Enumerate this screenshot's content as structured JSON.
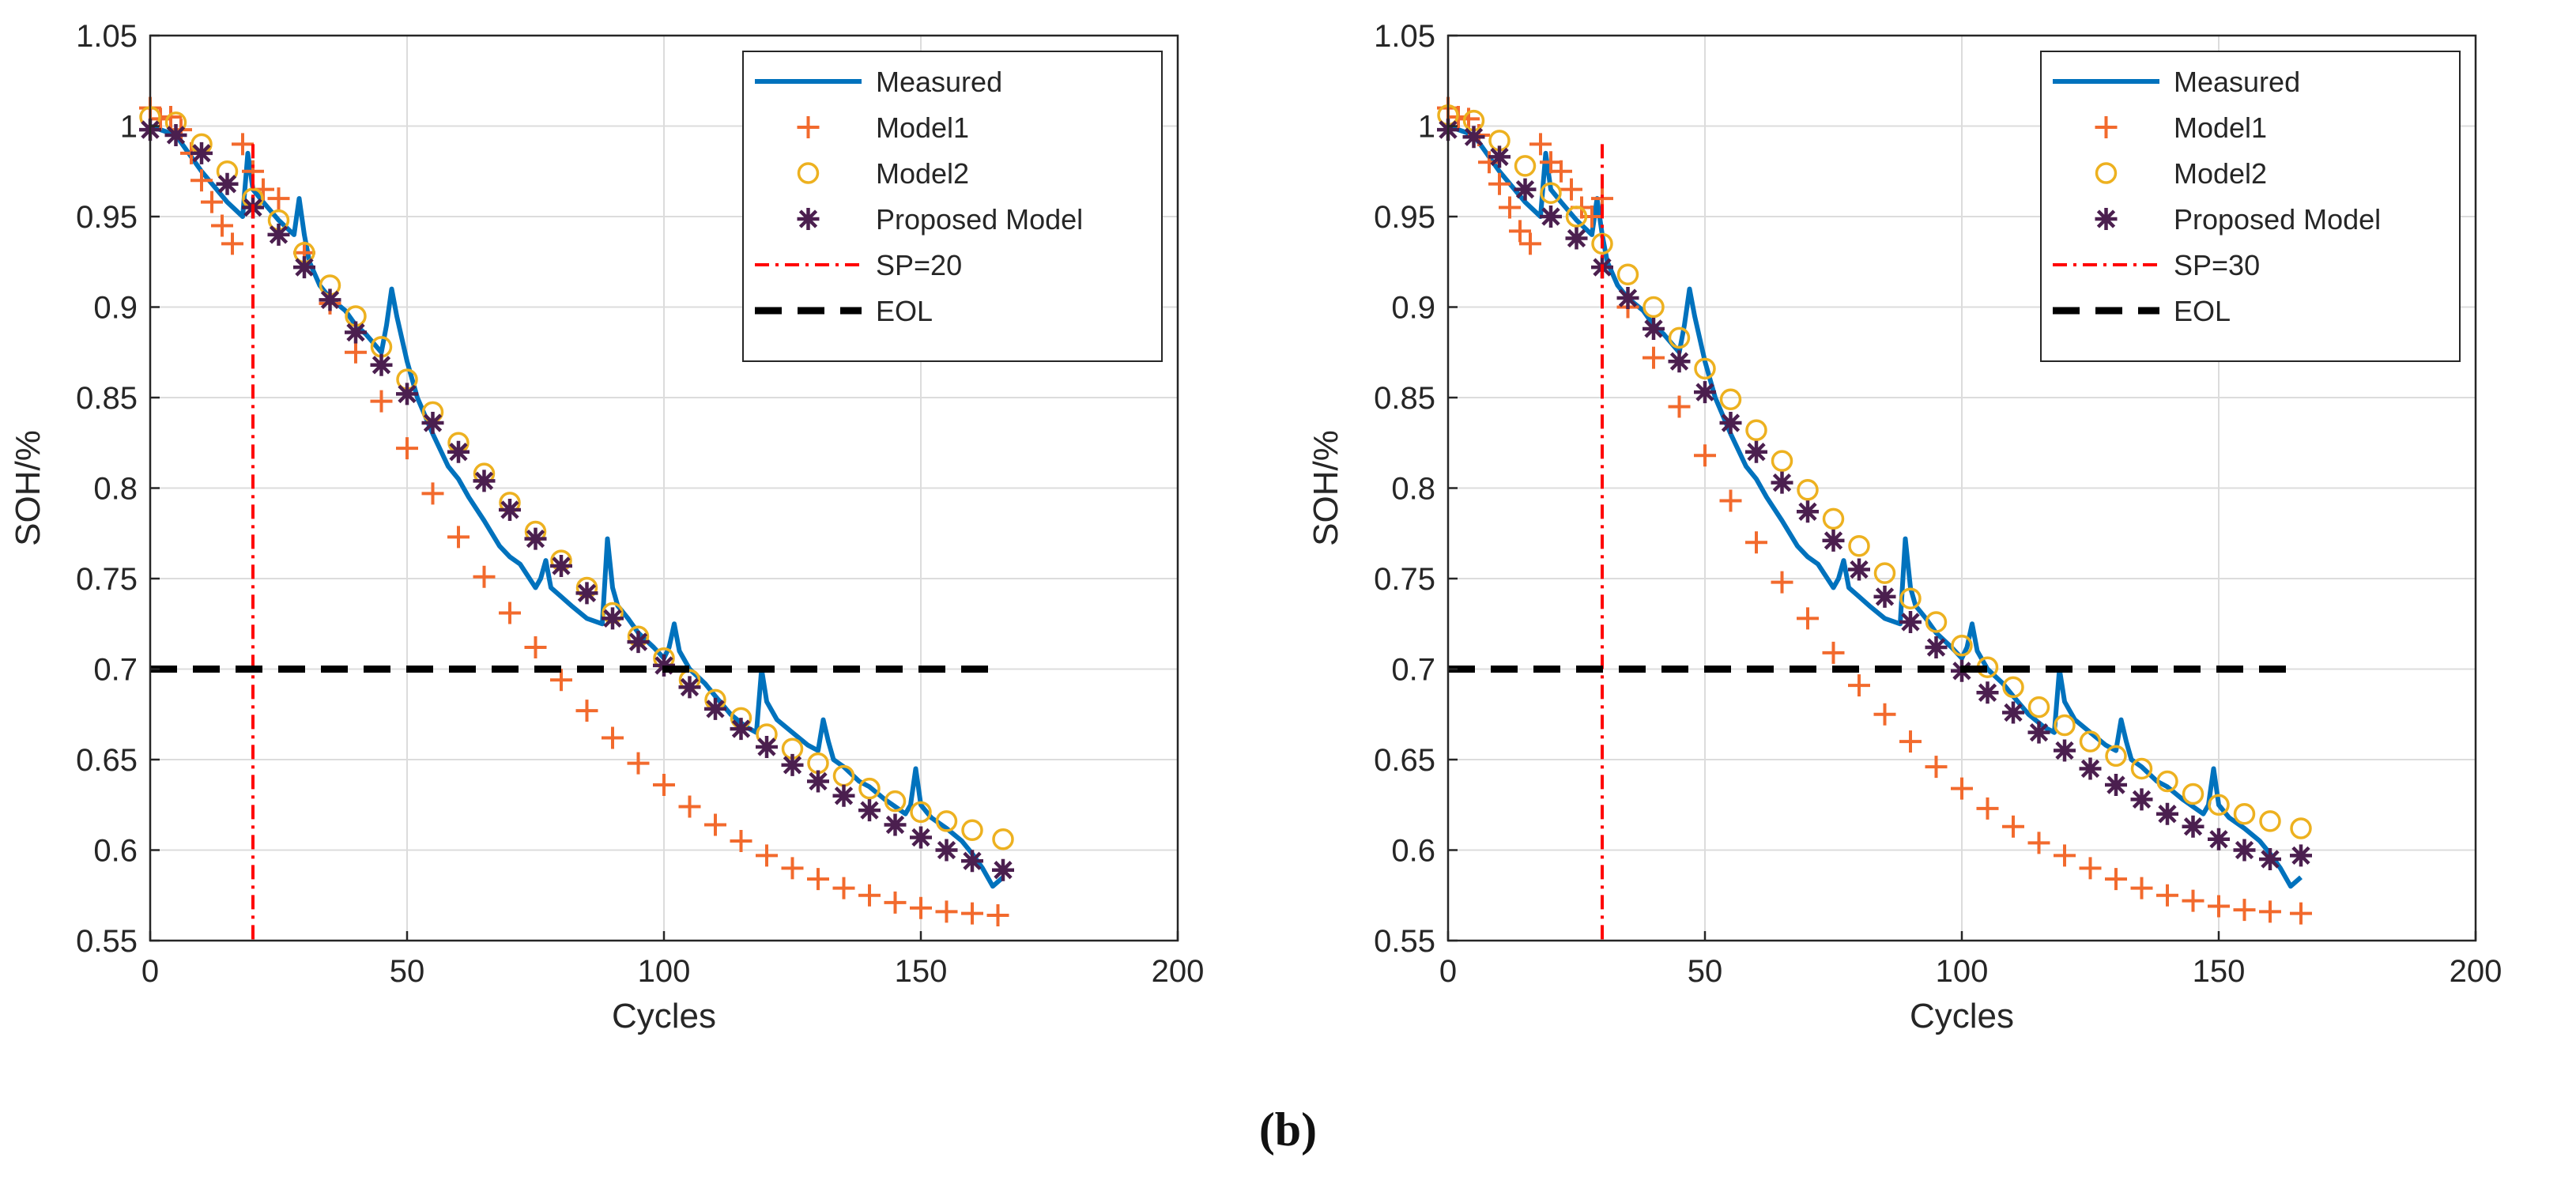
{
  "caption": "(b)",
  "colors": {
    "measured": "#0072bd",
    "model1": "#f26a2d",
    "model2": "#edb120",
    "proposed": "#4b1f4f",
    "sp": "#ff0000",
    "eol": "#000000",
    "grid": "#dcdcdc",
    "axis": "#262626"
  },
  "chart_data": [
    {
      "type": "line",
      "xlabel": "Cycles",
      "ylabel": "SOH/%",
      "xlim": [
        0,
        200
      ],
      "ylim": [
        0.55,
        1.05
      ],
      "xticks": [
        0,
        50,
        100,
        150,
        200
      ],
      "xtick_labels": [
        "0",
        "50",
        "100",
        "150",
        "200"
      ],
      "yticks": [
        0.55,
        0.6,
        0.65,
        0.7,
        0.75,
        0.8,
        0.85,
        0.9,
        0.95,
        1.0,
        1.05
      ],
      "ytick_labels": [
        "0.55",
        "0.6",
        "0.65",
        "0.7",
        "0.75",
        "0.8",
        "0.85",
        "0.9",
        "0.95",
        "1",
        "1.05"
      ],
      "grid": true,
      "legend_position": "top-right",
      "legend": [
        "Measured",
        "Model1",
        "Model2",
        "Proposed Model",
        "SP=20",
        "EOL"
      ],
      "series": [
        {
          "name": "Measured",
          "style": "line",
          "x": [
            0,
            5,
            10,
            15,
            18,
            19,
            20,
            22,
            25,
            28,
            29,
            30,
            31,
            33,
            35,
            38,
            40,
            42,
            45,
            46,
            47,
            48,
            50,
            52,
            55,
            58,
            60,
            62,
            65,
            68,
            70,
            72,
            75,
            76,
            77,
            78,
            80,
            82,
            85,
            88,
            89,
            90,
            91,
            93,
            95,
            98,
            100,
            101,
            102,
            103,
            105,
            108,
            110,
            113,
            116,
            118,
            119,
            120,
            122,
            125,
            128,
            130,
            131,
            132,
            133,
            135,
            138,
            140,
            143,
            145,
            147,
            148,
            149,
            150,
            152,
            155,
            158,
            160,
            162,
            164,
            166
          ],
          "y": [
            1.0,
            0.995,
            0.975,
            0.958,
            0.95,
            0.985,
            0.965,
            0.958,
            0.948,
            0.94,
            0.96,
            0.94,
            0.925,
            0.912,
            0.905,
            0.898,
            0.89,
            0.885,
            0.875,
            0.89,
            0.91,
            0.895,
            0.87,
            0.85,
            0.83,
            0.812,
            0.805,
            0.795,
            0.782,
            0.768,
            0.762,
            0.758,
            0.745,
            0.75,
            0.76,
            0.745,
            0.74,
            0.735,
            0.728,
            0.725,
            0.772,
            0.745,
            0.735,
            0.728,
            0.72,
            0.712,
            0.706,
            0.712,
            0.725,
            0.71,
            0.7,
            0.692,
            0.685,
            0.675,
            0.668,
            0.665,
            0.7,
            0.682,
            0.672,
            0.665,
            0.658,
            0.655,
            0.672,
            0.66,
            0.65,
            0.646,
            0.638,
            0.635,
            0.628,
            0.624,
            0.62,
            0.625,
            0.645,
            0.625,
            0.618,
            0.612,
            0.605,
            0.598,
            0.59,
            0.58,
            0.585
          ]
        },
        {
          "name": "Model1",
          "style": "plus",
          "x": [
            0,
            2,
            4,
            6,
            8,
            10,
            12,
            14,
            16,
            18,
            20,
            22,
            25,
            30,
            35,
            40,
            45,
            50,
            55,
            60,
            65,
            70,
            75,
            80,
            85,
            90,
            95,
            100,
            105,
            110,
            115,
            120,
            125,
            130,
            135,
            140,
            145,
            150,
            155,
            160,
            165
          ],
          "y": [
            1.01,
            1.004,
            1.005,
            0.998,
            0.985,
            0.97,
            0.958,
            0.945,
            0.935,
            0.99,
            0.975,
            0.965,
            0.96,
            0.93,
            0.902,
            0.875,
            0.848,
            0.822,
            0.797,
            0.773,
            0.751,
            0.731,
            0.712,
            0.694,
            0.677,
            0.662,
            0.648,
            0.636,
            0.624,
            0.614,
            0.605,
            0.597,
            0.59,
            0.584,
            0.579,
            0.575,
            0.571,
            0.568,
            0.566,
            0.565,
            0.564
          ]
        },
        {
          "name": "Model2",
          "style": "circle",
          "x": [
            0,
            5,
            10,
            15,
            20,
            25,
            30,
            35,
            40,
            45,
            50,
            55,
            60,
            65,
            70,
            75,
            80,
            85,
            90,
            95,
            100,
            105,
            110,
            115,
            120,
            125,
            130,
            135,
            140,
            145,
            150,
            155,
            160,
            166
          ],
          "y": [
            1.005,
            1.002,
            0.99,
            0.975,
            0.96,
            0.948,
            0.93,
            0.912,
            0.895,
            0.878,
            0.86,
            0.842,
            0.825,
            0.808,
            0.792,
            0.776,
            0.76,
            0.745,
            0.731,
            0.718,
            0.706,
            0.694,
            0.683,
            0.673,
            0.664,
            0.656,
            0.648,
            0.641,
            0.634,
            0.627,
            0.621,
            0.616,
            0.611,
            0.606
          ]
        },
        {
          "name": "Proposed Model",
          "style": "asterisk",
          "x": [
            0,
            5,
            10,
            15,
            20,
            25,
            30,
            35,
            40,
            45,
            50,
            55,
            60,
            65,
            70,
            75,
            80,
            85,
            90,
            95,
            100,
            105,
            110,
            115,
            120,
            125,
            130,
            135,
            140,
            145,
            150,
            155,
            160,
            166
          ],
          "y": [
            0.998,
            0.995,
            0.985,
            0.968,
            0.955,
            0.94,
            0.922,
            0.904,
            0.886,
            0.868,
            0.852,
            0.836,
            0.82,
            0.804,
            0.788,
            0.772,
            0.757,
            0.742,
            0.728,
            0.715,
            0.702,
            0.69,
            0.678,
            0.667,
            0.657,
            0.647,
            0.638,
            0.63,
            0.622,
            0.614,
            0.607,
            0.6,
            0.594,
            0.589
          ]
        },
        {
          "name": "SP=20",
          "style": "vline",
          "x": 20
        },
        {
          "name": "EOL",
          "style": "hline",
          "y": 0.7,
          "x": [
            0,
            166
          ]
        }
      ]
    },
    {
      "type": "line",
      "xlabel": "Cycles",
      "ylabel": "SOH/%",
      "xlim": [
        0,
        200
      ],
      "ylim": [
        0.55,
        1.05
      ],
      "xticks": [
        0,
        50,
        100,
        150,
        200
      ],
      "xtick_labels": [
        "0",
        "50",
        "100",
        "150",
        "200"
      ],
      "yticks": [
        0.55,
        0.6,
        0.65,
        0.7,
        0.75,
        0.8,
        0.85,
        0.9,
        0.95,
        1.0,
        1.05
      ],
      "ytick_labels": [
        "0.55",
        "0.6",
        "0.65",
        "0.7",
        "0.75",
        "0.8",
        "0.85",
        "0.9",
        "0.95",
        "1",
        "1.05"
      ],
      "grid": true,
      "legend_position": "top-right",
      "legend": [
        "Measured",
        "Model1",
        "Model2",
        "Proposed Model",
        "SP=30",
        "EOL"
      ],
      "series": [
        {
          "name": "Measured",
          "style": "line",
          "x": [
            0,
            5,
            10,
            15,
            18,
            19,
            20,
            22,
            25,
            28,
            29,
            30,
            31,
            33,
            35,
            38,
            40,
            42,
            45,
            46,
            47,
            48,
            50,
            52,
            55,
            58,
            60,
            62,
            65,
            68,
            70,
            72,
            75,
            76,
            77,
            78,
            80,
            82,
            85,
            88,
            89,
            90,
            91,
            93,
            95,
            98,
            100,
            101,
            102,
            103,
            105,
            108,
            110,
            113,
            116,
            118,
            119,
            120,
            122,
            125,
            128,
            130,
            131,
            132,
            133,
            135,
            138,
            140,
            143,
            145,
            147,
            148,
            149,
            150,
            152,
            155,
            158,
            160,
            162,
            164,
            166
          ],
          "y": [
            1.0,
            0.995,
            0.975,
            0.958,
            0.95,
            0.985,
            0.965,
            0.958,
            0.948,
            0.94,
            0.96,
            0.94,
            0.925,
            0.912,
            0.905,
            0.898,
            0.89,
            0.885,
            0.875,
            0.89,
            0.91,
            0.895,
            0.87,
            0.85,
            0.83,
            0.812,
            0.805,
            0.795,
            0.782,
            0.768,
            0.762,
            0.758,
            0.745,
            0.75,
            0.76,
            0.745,
            0.74,
            0.735,
            0.728,
            0.725,
            0.772,
            0.745,
            0.735,
            0.728,
            0.72,
            0.712,
            0.706,
            0.712,
            0.725,
            0.71,
            0.7,
            0.692,
            0.685,
            0.675,
            0.668,
            0.665,
            0.7,
            0.682,
            0.672,
            0.665,
            0.658,
            0.655,
            0.672,
            0.66,
            0.65,
            0.646,
            0.638,
            0.635,
            0.628,
            0.624,
            0.62,
            0.625,
            0.645,
            0.625,
            0.618,
            0.612,
            0.605,
            0.598,
            0.59,
            0.58,
            0.585
          ]
        },
        {
          "name": "Model1",
          "style": "plus",
          "x": [
            0,
            2,
            4,
            6,
            8,
            10,
            12,
            14,
            16,
            18,
            20,
            22,
            24,
            26,
            28,
            30,
            35,
            40,
            45,
            50,
            55,
            60,
            65,
            70,
            75,
            80,
            85,
            90,
            95,
            100,
            105,
            110,
            115,
            120,
            125,
            130,
            135,
            140,
            145,
            150,
            155,
            160,
            166
          ],
          "y": [
            1.01,
            1.005,
            1.004,
            0.995,
            0.98,
            0.968,
            0.955,
            0.942,
            0.935,
            0.99,
            0.98,
            0.975,
            0.965,
            0.955,
            0.95,
            0.96,
            0.9,
            0.872,
            0.845,
            0.818,
            0.793,
            0.77,
            0.748,
            0.728,
            0.709,
            0.691,
            0.675,
            0.66,
            0.646,
            0.634,
            0.623,
            0.613,
            0.604,
            0.597,
            0.59,
            0.584,
            0.579,
            0.575,
            0.572,
            0.569,
            0.567,
            0.566,
            0.565
          ]
        },
        {
          "name": "Model2",
          "style": "circle",
          "x": [
            0,
            5,
            10,
            15,
            20,
            25,
            30,
            35,
            40,
            45,
            50,
            55,
            60,
            65,
            70,
            75,
            80,
            85,
            90,
            95,
            100,
            105,
            110,
            115,
            120,
            125,
            130,
            135,
            140,
            145,
            150,
            155,
            160,
            166
          ],
          "y": [
            1.006,
            1.003,
            0.992,
            0.978,
            0.963,
            0.95,
            0.935,
            0.918,
            0.9,
            0.883,
            0.866,
            0.849,
            0.832,
            0.815,
            0.799,
            0.783,
            0.768,
            0.753,
            0.739,
            0.726,
            0.713,
            0.701,
            0.69,
            0.679,
            0.669,
            0.66,
            0.652,
            0.645,
            0.638,
            0.631,
            0.625,
            0.62,
            0.616,
            0.612
          ]
        },
        {
          "name": "Proposed Model",
          "style": "asterisk",
          "x": [
            0,
            5,
            10,
            15,
            20,
            25,
            30,
            35,
            40,
            45,
            50,
            55,
            60,
            65,
            70,
            75,
            80,
            85,
            90,
            95,
            100,
            105,
            110,
            115,
            120,
            125,
            130,
            135,
            140,
            145,
            150,
            155,
            160,
            166
          ],
          "y": [
            0.998,
            0.994,
            0.983,
            0.965,
            0.95,
            0.938,
            0.922,
            0.905,
            0.888,
            0.87,
            0.853,
            0.836,
            0.82,
            0.803,
            0.787,
            0.771,
            0.755,
            0.74,
            0.726,
            0.712,
            0.699,
            0.687,
            0.676,
            0.665,
            0.655,
            0.645,
            0.636,
            0.628,
            0.62,
            0.613,
            0.606,
            0.6,
            0.595,
            0.597
          ]
        },
        {
          "name": "SP=30",
          "style": "vline",
          "x": 30
        },
        {
          "name": "EOL",
          "style": "hline",
          "y": 0.7,
          "x": [
            0,
            166
          ]
        }
      ]
    }
  ]
}
